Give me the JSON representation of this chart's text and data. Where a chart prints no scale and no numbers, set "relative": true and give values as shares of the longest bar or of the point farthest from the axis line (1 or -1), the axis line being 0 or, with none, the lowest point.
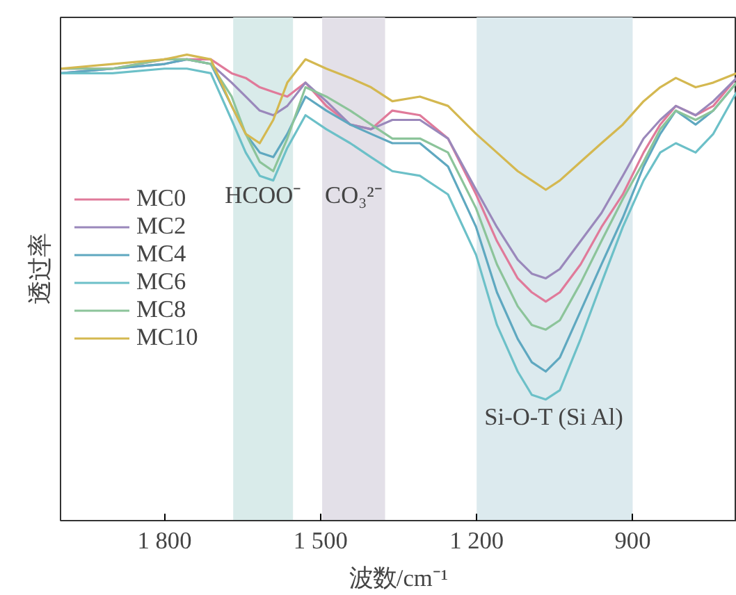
{
  "chart_data": {
    "type": "line",
    "relative": true,
    "xlabel": "波数/cm⁻¹",
    "ylabel": "透过率",
    "x": [
      2000,
      1900,
      1800,
      1757,
      1711,
      1671,
      1644,
      1617,
      1591,
      1564,
      1529,
      1489,
      1443,
      1403,
      1362,
      1309,
      1255,
      1201,
      1161,
      1121,
      1094,
      1067,
      1040,
      1000,
      960,
      919,
      879,
      847,
      817,
      779,
      745,
      700
    ],
    "xlim": [
      2000,
      700
    ],
    "xticks": [
      {
        "value": 1800,
        "label": "1 800"
      },
      {
        "value": 1500,
        "label": "1 500"
      },
      {
        "value": 1200,
        "label": "1 200"
      },
      900
    ],
    "tick_labels": "x",
    "grid": false,
    "legend": "left",
    "line_style": "solid",
    "marker": "none",
    "bands": [
      {
        "axis": "x",
        "from": 1668,
        "to": 1553,
        "label": "HCOO⁻",
        "color": "#d9ebea"
      },
      {
        "axis": "x",
        "from": 1497,
        "to": 1376,
        "label": "CO₃²⁻",
        "color": "#e3e0e8"
      },
      {
        "axis": "x",
        "from": 1200,
        "to": 900,
        "label": "Si-O-T (Si Al)",
        "color": "#dceaee"
      }
    ],
    "series": [
      {
        "name": "MC0",
        "color": "#e07a9a",
        "values": [
          0.97,
          0.97,
          0.99,
          0.99,
          0.99,
          0.96,
          0.95,
          0.93,
          0.92,
          0.91,
          0.94,
          0.89,
          0.85,
          0.84,
          0.88,
          0.87,
          0.82,
          0.7,
          0.6,
          0.52,
          0.49,
          0.47,
          0.49,
          0.55,
          0.63,
          0.7,
          0.79,
          0.85,
          0.89,
          0.87,
          0.89,
          0.95
        ]
      },
      {
        "name": "MC2",
        "color": "#9a88bb",
        "values": [
          0.96,
          0.97,
          0.98,
          0.99,
          0.98,
          0.94,
          0.91,
          0.88,
          0.87,
          0.89,
          0.94,
          0.9,
          0.85,
          0.84,
          0.86,
          0.86,
          0.82,
          0.71,
          0.63,
          0.56,
          0.53,
          0.52,
          0.54,
          0.6,
          0.66,
          0.74,
          0.82,
          0.86,
          0.89,
          0.87,
          0.9,
          0.95
        ]
      },
      {
        "name": "MC4",
        "color": "#5fa8c0",
        "values": [
          0.96,
          0.97,
          0.98,
          0.99,
          0.98,
          0.89,
          0.83,
          0.79,
          0.78,
          0.83,
          0.91,
          0.88,
          0.85,
          0.83,
          0.81,
          0.81,
          0.76,
          0.63,
          0.49,
          0.39,
          0.34,
          0.32,
          0.35,
          0.45,
          0.55,
          0.65,
          0.76,
          0.83,
          0.88,
          0.85,
          0.88,
          0.94
        ]
      },
      {
        "name": "MC6",
        "color": "#6cc0c8",
        "values": [
          0.96,
          0.96,
          0.97,
          0.97,
          0.96,
          0.86,
          0.79,
          0.74,
          0.73,
          0.8,
          0.87,
          0.84,
          0.81,
          0.78,
          0.75,
          0.74,
          0.7,
          0.57,
          0.42,
          0.32,
          0.27,
          0.26,
          0.28,
          0.39,
          0.51,
          0.63,
          0.73,
          0.79,
          0.81,
          0.79,
          0.83,
          0.92
        ]
      },
      {
        "name": "MC8",
        "color": "#8cc49a",
        "values": [
          0.97,
          0.97,
          0.99,
          0.99,
          0.98,
          0.91,
          0.83,
          0.77,
          0.75,
          0.82,
          0.93,
          0.91,
          0.88,
          0.85,
          0.82,
          0.82,
          0.79,
          0.67,
          0.55,
          0.46,
          0.42,
          0.41,
          0.43,
          0.51,
          0.6,
          0.69,
          0.77,
          0.84,
          0.88,
          0.86,
          0.88,
          0.94
        ]
      },
      {
        "name": "MC10",
        "color": "#d4b850",
        "values": [
          0.97,
          0.98,
          0.99,
          1.0,
          0.99,
          0.89,
          0.83,
          0.81,
          0.86,
          0.94,
          0.99,
          0.97,
          0.95,
          0.93,
          0.9,
          0.91,
          0.89,
          0.83,
          0.79,
          0.75,
          0.73,
          0.71,
          0.73,
          0.77,
          0.81,
          0.85,
          0.9,
          0.93,
          0.95,
          0.93,
          0.94,
          0.96
        ]
      }
    ]
  }
}
